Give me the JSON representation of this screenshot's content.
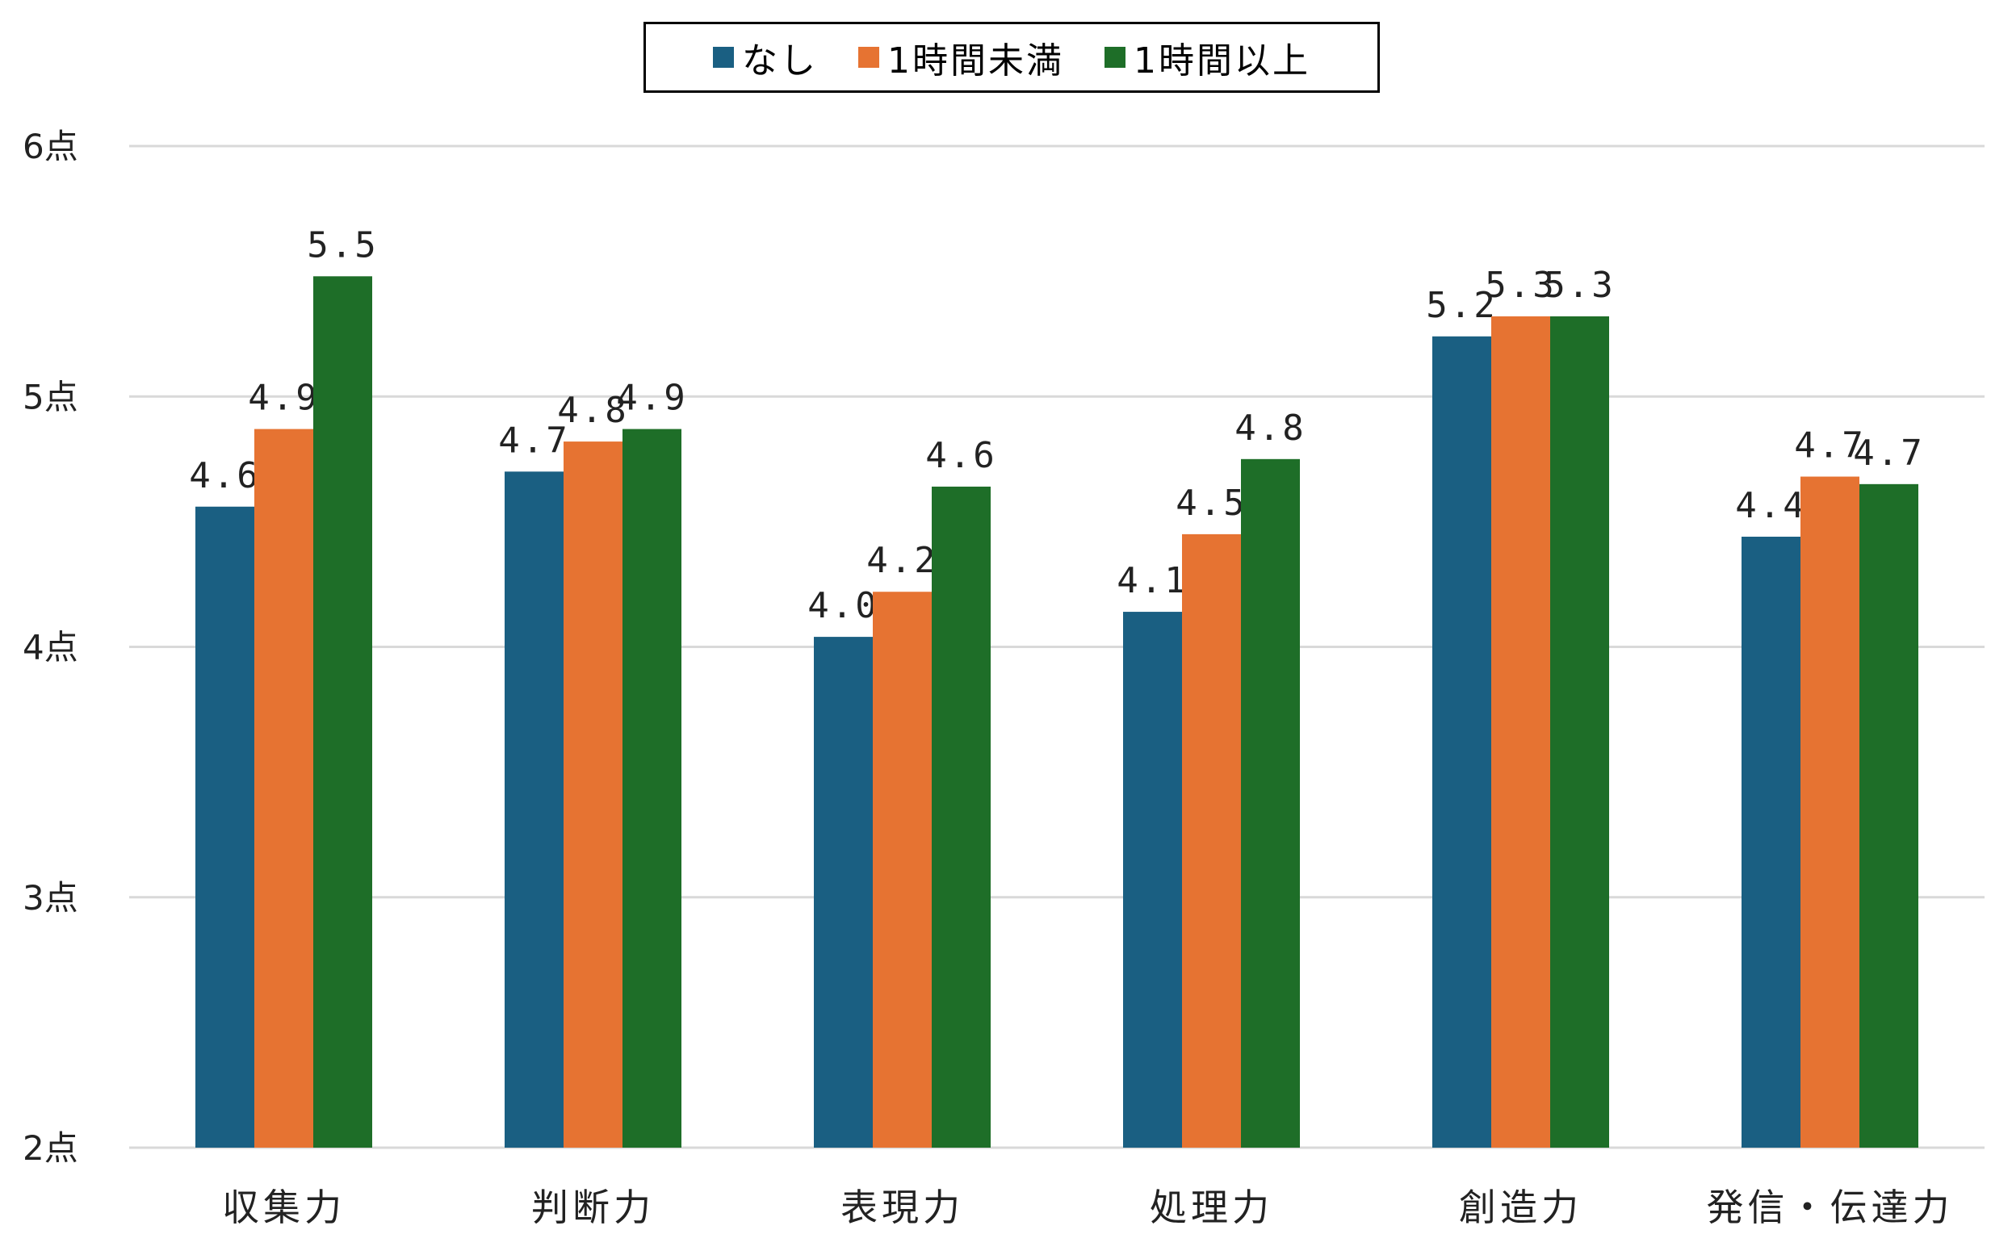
{
  "chart_data": {
    "type": "bar",
    "categories": [
      "収集力",
      "判断力",
      "表現力",
      "処理力",
      "創造力",
      "発信・伝達力"
    ],
    "series": [
      {
        "name": "なし",
        "color": "#1a5f82",
        "values": [
          4.56,
          4.7,
          4.04,
          4.14,
          5.24,
          4.44
        ],
        "labels": [
          "4.6",
          "4.7",
          "4.0",
          "4.1",
          "5.2",
          "4.4"
        ]
      },
      {
        "name": "1時間未満",
        "color": "#e67332",
        "values": [
          4.87,
          4.82,
          4.22,
          4.45,
          5.32,
          4.68
        ],
        "labels": [
          "4.9",
          "4.8",
          "4.2",
          "4.5",
          "5.3",
          "4.7"
        ]
      },
      {
        "name": "1時間以上",
        "color": "#1e6e28",
        "values": [
          5.48,
          4.87,
          4.64,
          4.75,
          5.32,
          4.65
        ],
        "labels": [
          "5.5",
          "4.9",
          "4.6",
          "4.8",
          "5.3",
          "4.7"
        ]
      }
    ],
    "yticks": [
      2,
      3,
      4,
      5,
      6
    ],
    "ytick_labels": [
      "2点",
      "3点",
      "4点",
      "5点",
      "6点"
    ],
    "ylim": [
      2,
      6
    ],
    "grid": true,
    "legend_position": "top-center"
  }
}
